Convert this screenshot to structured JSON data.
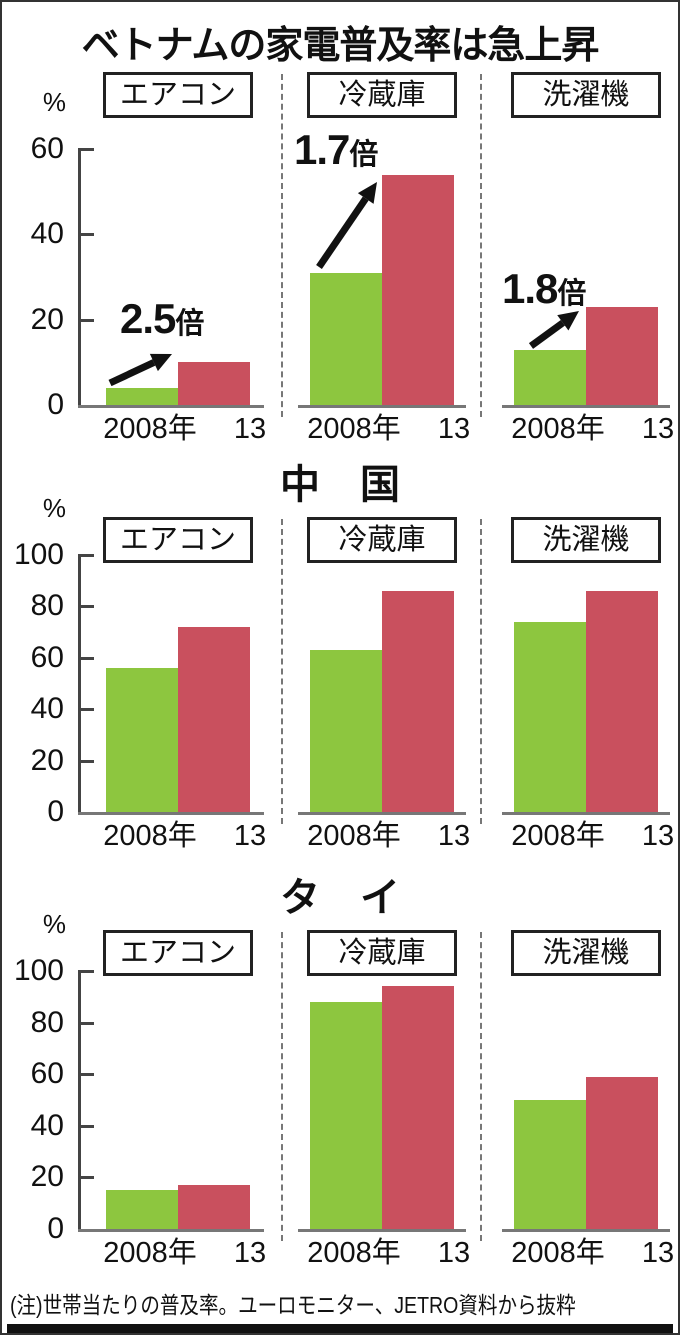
{
  "title": "ベトナムの家電普及率は急上昇",
  "footer_note": "(注)世帯当たりの普及率。ユーロモニター、JETRO資料から抜粋",
  "colors": {
    "bar_2008": "#8dc63f",
    "bar_2013": "#c9505e",
    "axis": "#444444",
    "baseline": "#777777",
    "separator": "#777777",
    "text": "#111111",
    "background": "#ffffff"
  },
  "chart_data": [
    {
      "type": "bar",
      "region": "ベトナム",
      "region_header": "",
      "ylabel": "%",
      "ylim": [
        0,
        60
      ],
      "yticks": [
        0,
        20,
        40,
        60
      ],
      "categories": [
        "2008年",
        "13"
      ],
      "grid": false,
      "legend_position": "none",
      "panels": [
        {
          "label": "エアコン",
          "values": [
            4,
            10
          ],
          "ratio": {
            "number": "2.5",
            "suffix": "倍"
          }
        },
        {
          "label": "冷蔵庫",
          "values": [
            31,
            54
          ],
          "ratio": {
            "number": "1.7",
            "suffix": "倍"
          }
        },
        {
          "label": "洗濯機",
          "values": [
            13,
            23
          ],
          "ratio": {
            "number": "1.8",
            "suffix": "倍"
          }
        }
      ]
    },
    {
      "type": "bar",
      "region": "中国",
      "region_header": "中　国",
      "ylabel": "%",
      "ylim": [
        0,
        100
      ],
      "yticks": [
        0,
        20,
        40,
        60,
        80,
        100
      ],
      "categories": [
        "2008年",
        "13"
      ],
      "grid": false,
      "legend_position": "none",
      "panels": [
        {
          "label": "エアコン",
          "values": [
            56,
            72
          ]
        },
        {
          "label": "冷蔵庫",
          "values": [
            63,
            86
          ]
        },
        {
          "label": "洗濯機",
          "values": [
            74,
            86
          ]
        }
      ]
    },
    {
      "type": "bar",
      "region": "タイ",
      "region_header": "タ　イ",
      "ylabel": "%",
      "ylim": [
        0,
        100
      ],
      "yticks": [
        0,
        20,
        40,
        60,
        80,
        100
      ],
      "categories": [
        "2008年",
        "13"
      ],
      "grid": false,
      "legend_position": "none",
      "panels": [
        {
          "label": "エアコン",
          "values": [
            15,
            17
          ]
        },
        {
          "label": "冷蔵庫",
          "values": [
            88,
            94
          ]
        },
        {
          "label": "洗濯機",
          "values": [
            50,
            59
          ]
        }
      ]
    }
  ]
}
